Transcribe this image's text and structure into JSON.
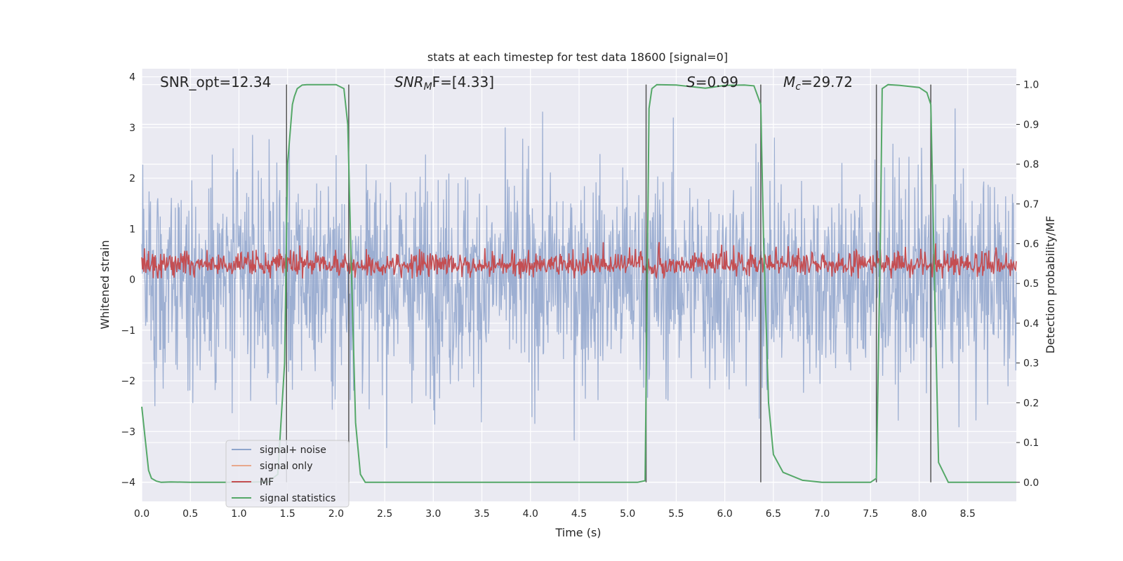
{
  "chart_data": {
    "type": "line",
    "title": "stats at each timestep for test data 18600 [signal=0]",
    "xlabel": "Time (s)",
    "ylabel_left": "Whitened strain",
    "ylabel_right": "Detection probability/MF",
    "xlim": [
      0.0,
      9.0
    ],
    "ylim_left": [
      -4.38,
      4.16
    ],
    "ylim_right": [
      -0.048,
      1.04
    ],
    "x_ticks": [
      "0.0",
      "0.5",
      "1.0",
      "1.5",
      "2.0",
      "2.5",
      "3.0",
      "3.5",
      "4.0",
      "4.5",
      "5.0",
      "5.5",
      "6.0",
      "6.5",
      "7.0",
      "7.5",
      "8.0",
      "8.5"
    ],
    "y_left_ticks": [
      "4",
      "3",
      "2",
      "1",
      "0",
      "−1",
      "−2",
      "−3",
      "−4"
    ],
    "y_right_ticks": [
      "1.0",
      "0.9",
      "0.8",
      "0.7",
      "0.6",
      "0.5",
      "0.4",
      "0.3",
      "0.2",
      "0.1",
      "0.0"
    ],
    "grid": true,
    "legend_position": "lower-left",
    "annotations": {
      "snr_opt": "SNR_opt=12.34",
      "snr_mf_base": "SNR",
      "snr_mf_sub": "M",
      "snr_mf_rest": "F=[4.33]",
      "s_var": "S",
      "s_val": "=0.99",
      "mc_var": "M",
      "mc_sub": "c",
      "mc_val": "=29.72"
    },
    "series": [
      {
        "name": "signal+ noise",
        "color": "#8fa5cc",
        "axis": "left",
        "description_stats": {
          "mean": 0.0,
          "std": 1.0
        }
      },
      {
        "name": "signal only",
        "color": "#e8a88c",
        "axis": "left",
        "values": []
      },
      {
        "name": "MF",
        "color": "#c44e52",
        "axis": "left",
        "description_stats": {
          "mean": 0.3,
          "max": 1.0
        }
      },
      {
        "name": "signal statistics",
        "color": "#55a868",
        "axis": "right",
        "x": [
          0.0,
          0.03,
          0.07,
          0.1,
          0.15,
          0.2,
          0.3,
          0.5,
          0.8,
          1.0,
          1.2,
          1.3,
          1.4,
          1.47,
          1.5,
          1.55,
          1.57,
          1.6,
          1.65,
          1.7,
          1.75,
          1.8,
          2.0,
          2.08,
          2.12,
          2.15,
          2.2,
          2.25,
          2.3,
          2.5,
          3.0,
          4.0,
          5.0,
          5.1,
          5.18,
          5.22,
          5.25,
          5.3,
          5.5,
          5.8,
          6.0,
          6.2,
          6.3,
          6.37,
          6.4,
          6.45,
          6.5,
          6.6,
          6.8,
          7.0,
          7.4,
          7.5,
          7.56,
          7.6,
          7.62,
          7.68,
          7.8,
          8.0,
          8.08,
          8.12,
          8.15,
          8.2,
          8.3,
          8.5,
          9.0
        ],
        "values": [
          0.19,
          0.12,
          0.03,
          0.01,
          0.003,
          0.0,
          0.001,
          0.0,
          0.0,
          0.0,
          0.001,
          0.001,
          0.02,
          0.3,
          0.8,
          0.95,
          0.97,
          0.99,
          0.999,
          1.0,
          1.0,
          1.0,
          1.0,
          0.99,
          0.9,
          0.6,
          0.15,
          0.02,
          0.0,
          0.0,
          0.0,
          0.0,
          0.0,
          0.0,
          0.004,
          0.94,
          0.99,
          1.0,
          0.999,
          0.991,
          0.998,
          0.999,
          0.997,
          0.95,
          0.6,
          0.2,
          0.07,
          0.025,
          0.005,
          0.0,
          0.0,
          0.0,
          0.01,
          0.6,
          0.99,
          1.0,
          0.998,
          0.993,
          0.98,
          0.95,
          0.6,
          0.05,
          0.0,
          0.0,
          0.0
        ]
      }
    ],
    "vertical_markers_x": [
      1.49,
      2.13,
      5.19,
      6.37,
      7.56,
      8.12
    ]
  }
}
